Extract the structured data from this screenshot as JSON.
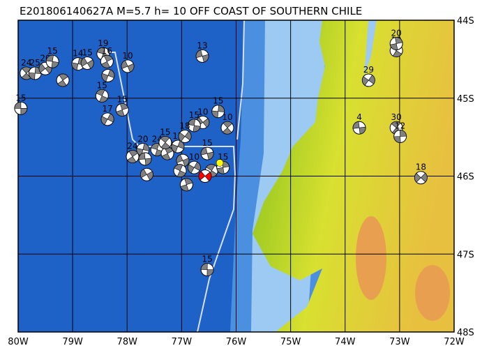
{
  "title": "E201806140627A M=5.7 h= 10 OFF COAST OF SOUTHERN CHILE",
  "map": {
    "lon_range": [
      -80,
      -72
    ],
    "lat_range": [
      -48,
      -44
    ],
    "colors": {
      "deep_ocean": "#1e62c8",
      "shelf": "#4a8fe0",
      "shallow": "#9dcaf2",
      "land_low": "#7fbf1a",
      "land_mid": "#d8e030",
      "land_high": "#e8a050",
      "grid": "#000000",
      "plate_boundary": "#d8e0f8",
      "event_highlight": "#ff0000",
      "epicenter_star": "#ffff00"
    },
    "x_ticks": [
      "80W",
      "79W",
      "78W",
      "77W",
      "76W",
      "75W",
      "74W",
      "73W",
      "72W"
    ],
    "y_ticks": [
      "44S",
      "45S",
      "46S",
      "47S",
      "48S"
    ]
  },
  "mechanisms": [
    {
      "lon": -79.95,
      "lat": -45.13,
      "depth": "15"
    },
    {
      "lon": -79.85,
      "lat": -44.68,
      "depth": "24"
    },
    {
      "lon": -79.69,
      "lat": -44.68,
      "depth": "25"
    },
    {
      "lon": -79.5,
      "lat": -44.62,
      "depth": "20"
    },
    {
      "lon": -79.37,
      "lat": -44.53,
      "depth": "15"
    },
    {
      "lon": -79.18,
      "lat": -44.77,
      "depth": ""
    },
    {
      "lon": -78.9,
      "lat": -44.56,
      "depth": "14"
    },
    {
      "lon": -78.73,
      "lat": -44.55,
      "depth": "15"
    },
    {
      "lon": -78.44,
      "lat": -44.43,
      "depth": "19"
    },
    {
      "lon": -78.37,
      "lat": -44.53,
      "depth": "16"
    },
    {
      "lon": -78.35,
      "lat": -44.71,
      "depth": ""
    },
    {
      "lon": -77.99,
      "lat": -44.59,
      "depth": "10"
    },
    {
      "lon": -78.46,
      "lat": -44.97,
      "depth": "15"
    },
    {
      "lon": -78.09,
      "lat": -45.15,
      "depth": "15"
    },
    {
      "lon": -78.36,
      "lat": -45.27,
      "depth": "17"
    },
    {
      "lon": -76.62,
      "lat": -44.46,
      "depth": "13"
    },
    {
      "lon": -73.06,
      "lat": -44.39,
      "depth": "12"
    },
    {
      "lon": -73.06,
      "lat": -44.3,
      "depth": "20"
    },
    {
      "lon": -73.57,
      "lat": -44.77,
      "depth": "29"
    },
    {
      "lon": -73.74,
      "lat": -45.38,
      "depth": "4"
    },
    {
      "lon": -73.06,
      "lat": -45.38,
      "depth": "30"
    },
    {
      "lon": -72.99,
      "lat": -45.49,
      "depth": "12"
    },
    {
      "lon": -72.61,
      "lat": -46.02,
      "depth": "18"
    },
    {
      "lon": -76.53,
      "lat": -47.2,
      "depth": "15"
    },
    {
      "lon": -76.16,
      "lat": -45.38,
      "depth": "10"
    },
    {
      "lon": -76.33,
      "lat": -45.17,
      "depth": "15"
    },
    {
      "lon": -76.61,
      "lat": -45.31,
      "depth": "10"
    },
    {
      "lon": -76.77,
      "lat": -45.35,
      "depth": "15"
    },
    {
      "lon": -77.9,
      "lat": -45.75,
      "depth": "24"
    },
    {
      "lon": -77.71,
      "lat": -45.66,
      "depth": "20"
    },
    {
      "lon": -77.64,
      "lat": -45.98,
      "depth": ""
    },
    {
      "lon": -77.45,
      "lat": -45.66,
      "depth": "24"
    },
    {
      "lon": -77.26,
      "lat": -45.71,
      "depth": "30"
    },
    {
      "lon": -77.07,
      "lat": -45.62,
      "depth": "15"
    },
    {
      "lon": -76.98,
      "lat": -45.8,
      "depth": ""
    },
    {
      "lon": -77.03,
      "lat": -45.93,
      "depth": ""
    },
    {
      "lon": -76.91,
      "lat": -46.11,
      "depth": ""
    },
    {
      "lon": -76.77,
      "lat": -45.89,
      "depth": "10"
    },
    {
      "lon": -76.53,
      "lat": -45.71,
      "depth": "15"
    },
    {
      "lon": -76.45,
      "lat": -45.93,
      "depth": ""
    },
    {
      "lon": -76.24,
      "lat": -45.89,
      "depth": "15"
    },
    {
      "lon": -76.94,
      "lat": -45.49,
      "depth": "18"
    },
    {
      "lon": -77.67,
      "lat": -45.78,
      "depth": ""
    },
    {
      "lon": -77.3,
      "lat": -45.57,
      "depth": "15"
    }
  ],
  "event": {
    "lon": -76.57,
    "lat": -46.0,
    "depth": "10"
  },
  "epicenter": {
    "lon": -76.3,
    "lat": -45.83
  }
}
